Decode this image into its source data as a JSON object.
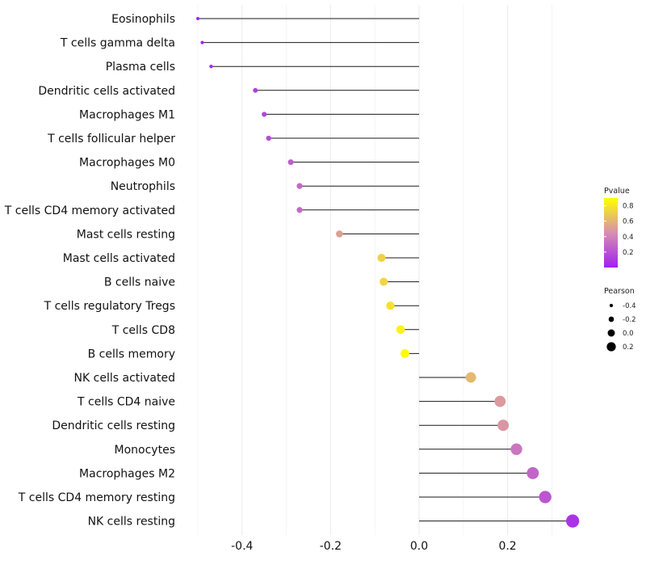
{
  "chart_data": {
    "type": "lollipop",
    "title": "",
    "xlabel": "",
    "ylabel": "",
    "xlim": [
      -0.5,
      0.35
    ],
    "x_ticks": [
      -0.4,
      -0.2,
      0.0,
      0.2
    ],
    "x_tick_labels": [
      "-0.4",
      "-0.2",
      "0.0",
      "0.2"
    ],
    "grid": true,
    "color_scale": {
      "low_color": "#a020f0",
      "mid_color": "#d68fb0",
      "high_color": "#ffff00"
    },
    "categories": [
      "Eosinophils",
      "T cells gamma delta",
      "Plasma cells",
      "Dendritic cells activated",
      "Macrophages M1",
      "T cells follicular helper",
      "Macrophages M0",
      "Neutrophils",
      "T cells CD4 memory activated",
      "Mast cells resting",
      "Mast cells activated",
      "B cells naive",
      "T cells regulatory  Tregs ",
      "T cells CD8",
      "B cells memory",
      "NK cells activated",
      "T cells CD4 naive",
      "Dendritic cells resting",
      "Monocytes",
      "Macrophages M2",
      "T cells CD4 memory resting",
      "NK cells resting"
    ],
    "pearson": [
      -0.5,
      -0.49,
      -0.47,
      -0.37,
      -0.35,
      -0.34,
      -0.29,
      -0.27,
      -0.27,
      -0.18,
      -0.085,
      -0.08,
      -0.065,
      -0.042,
      -0.032,
      0.117,
      0.183,
      0.19,
      0.22,
      0.257,
      0.285,
      0.347
    ],
    "pvalue": [
      0.02,
      0.03,
      0.05,
      0.12,
      0.15,
      0.18,
      0.25,
      0.3,
      0.3,
      0.52,
      0.72,
      0.74,
      0.78,
      0.85,
      0.88,
      0.62,
      0.5,
      0.48,
      0.35,
      0.28,
      0.22,
      0.08
    ],
    "legends": {
      "color": {
        "title": "Pvalue",
        "labels": [
          "0.8",
          "0.6",
          "0.4",
          "0.2"
        ],
        "values": [
          0.8,
          0.6,
          0.4,
          0.2
        ],
        "range": [
          0.0,
          0.9
        ],
        "placement": "right"
      },
      "size": {
        "title": "Pearson",
        "labels": [
          "-0.4",
          "-0.2",
          "0.0",
          "0.2"
        ],
        "values": [
          -0.4,
          -0.2,
          0.0,
          0.2
        ],
        "placement": "right"
      }
    }
  }
}
